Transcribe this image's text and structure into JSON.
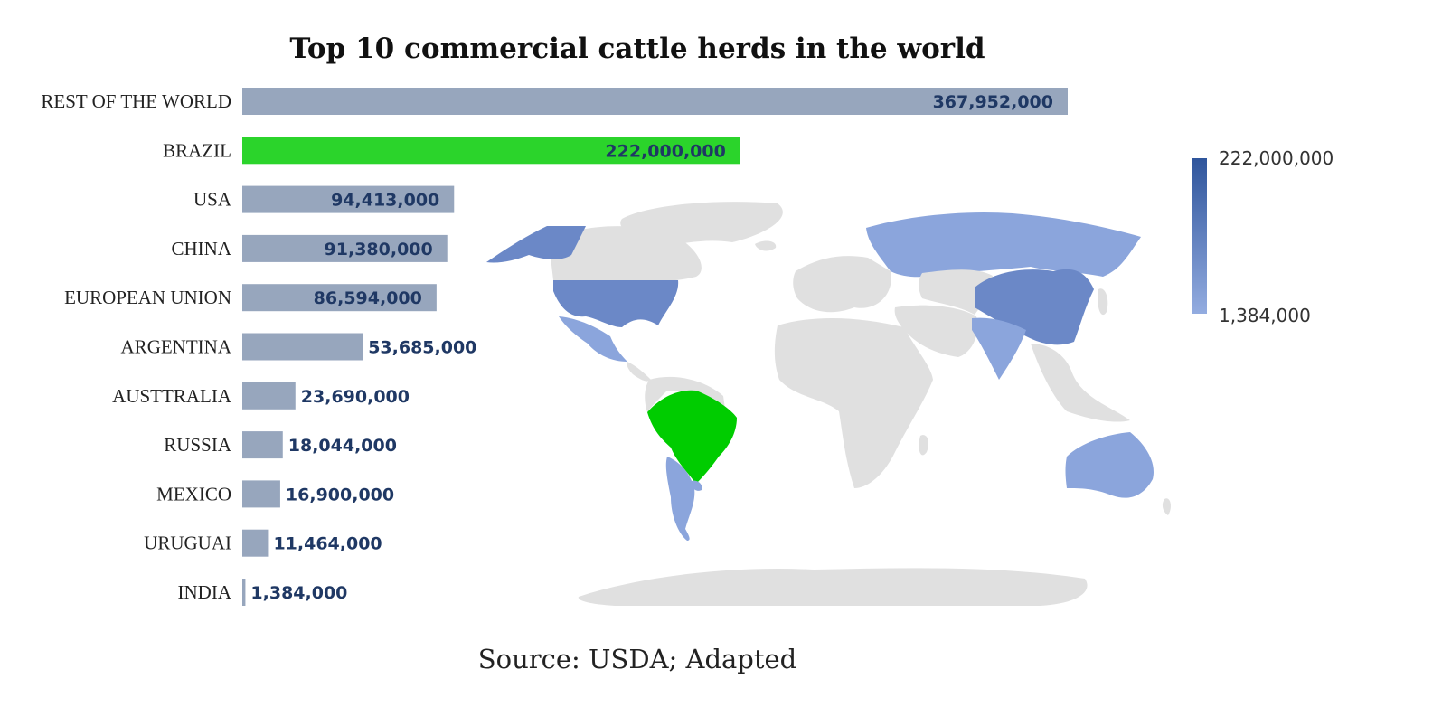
{
  "chart_data": {
    "type": "bar",
    "orientation": "horizontal",
    "title": "Top 10 commercial cattle herds in the world",
    "categories": [
      "REST OF THE WORLD",
      "BRAZIL",
      "USA",
      "CHINA",
      "EUROPEAN UNION",
      "ARGENTINA",
      "AUSTTRALIA",
      "RUSSIA",
      "MEXICO",
      "URUGUAI",
      "INDIA"
    ],
    "values": [
      367952000,
      222000000,
      94413000,
      91380000,
      86594000,
      53685000,
      23690000,
      18044000,
      16900000,
      11464000,
      1384000
    ],
    "value_labels": [
      "367,952,000",
      "222,000,000",
      "94,413,000",
      "91,380,000",
      "86,594,000",
      "53,685,000",
      "23,690,000",
      "18,044,000",
      "16,900,000",
      "11,464,000",
      "1,384,000"
    ],
    "colors": {
      "default": "#97a6bd",
      "highlight": "#2bd42b",
      "value_text": "#1f3864"
    },
    "highlight_category": "BRAZIL",
    "xlim": [
      0,
      367952000
    ],
    "grid": false,
    "map": {
      "type": "choropleth",
      "highlight_region": "BRAZIL",
      "highlight_color": "#00cc00",
      "scale_colors": [
        "#8fa8dd",
        "#2f559c"
      ],
      "other_color": "#e0e0e0"
    },
    "legend": {
      "max_label": "222,000,000",
      "min_label": "1,384,000",
      "placement": "right"
    }
  },
  "source": "Source: USDA; Adapted"
}
